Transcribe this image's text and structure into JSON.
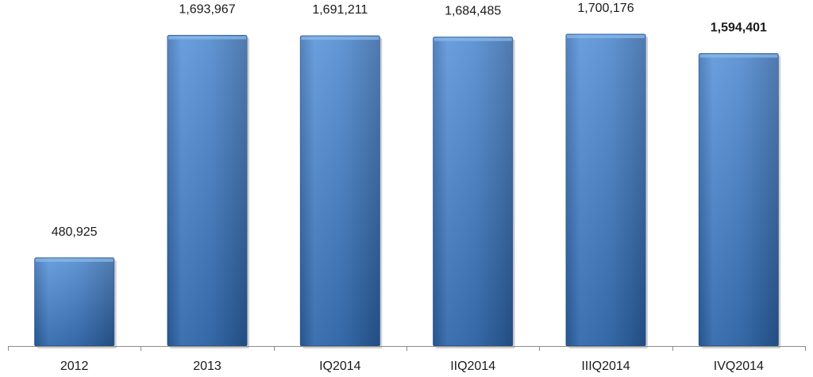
{
  "chart_data": {
    "type": "bar",
    "categories": [
      "2012",
      "2013",
      "IQ2014",
      "IIQ2014",
      "IIIQ2014",
      "IVQ2014"
    ],
    "values": [
      480925,
      1693967,
      1691211,
      1684485,
      1700176,
      1594401
    ],
    "value_labels": [
      "480,925",
      "1,693,967",
      "1,691,211",
      "1,684,485",
      "1,700,176",
      "1,594,401"
    ],
    "emphasized_index": 5,
    "title": "",
    "xlabel": "",
    "ylabel": "",
    "ylim": [
      0,
      1800000
    ],
    "grid": false,
    "legend": "none",
    "colors": {
      "bar_light": "#5b9bd5",
      "bar_mid": "#3f7ec9",
      "bar_dark": "#2a5d9e",
      "axis": "#8c8c8c"
    }
  }
}
